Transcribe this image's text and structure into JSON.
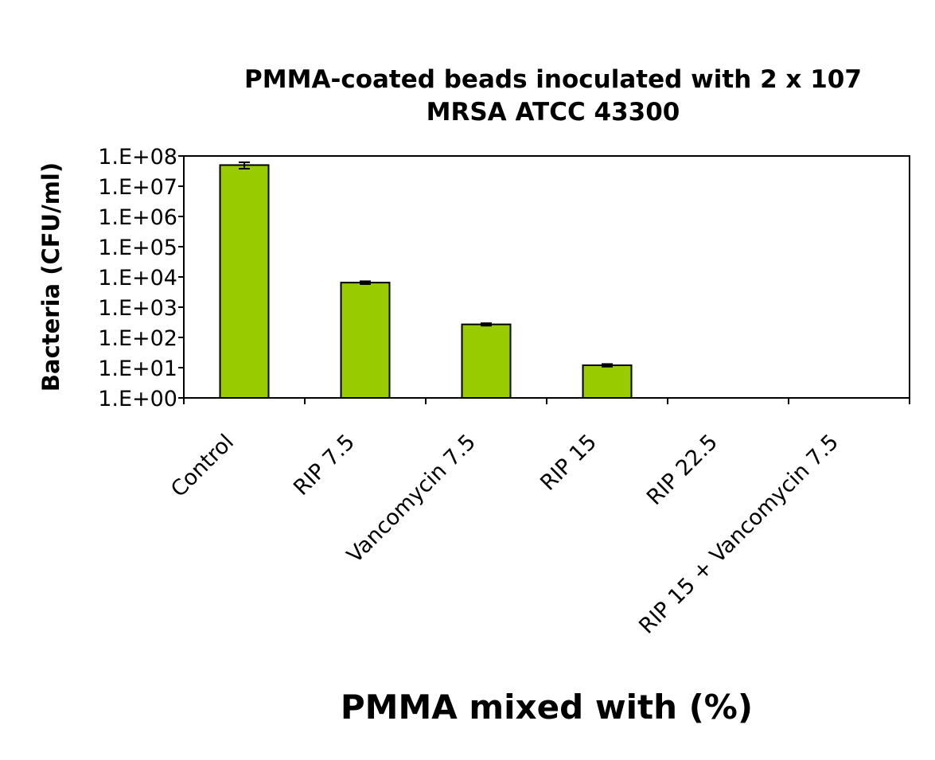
{
  "chart_data": {
    "type": "bar",
    "title_lines": [
      "PMMA-coated beads inoculated with 2 x 107",
      "MRSA ATCC 43300"
    ],
    "xlabel": "PMMA mixed with (%)",
    "ylabel": "Bacteria (CFU/ml)",
    "y_scale": "log",
    "ylim": [
      1,
      100000000
    ],
    "y_ticks": [
      "1.E+00",
      "1.E+01",
      "1.E+02",
      "1.E+03",
      "1.E+04",
      "1.E+05",
      "1.E+06",
      "1.E+07",
      "1.E+08"
    ],
    "categories": [
      "Control",
      "RIP 7.5",
      "Vancomycin 7.5",
      "RIP 15",
      "RIP 22.5",
      "RIP 15 + Vancomycin 7.5"
    ],
    "values": [
      50000000,
      6500,
      270,
      12,
      1,
      1
    ],
    "errors": [
      12000000,
      700,
      25,
      1.2,
      0,
      0
    ],
    "bar_color": "#99CC00",
    "legend": false,
    "grid": false
  }
}
